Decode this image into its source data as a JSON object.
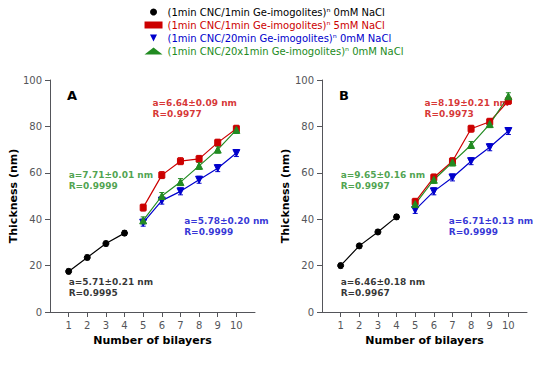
{
  "chart_data": [
    {
      "type": "line",
      "title": "A",
      "xlabel": "Number of bilayers",
      "ylabel": "Thickness (nm)",
      "xlim": [
        0,
        11
      ],
      "ylim": [
        0,
        100
      ],
      "xticks": [
        1,
        2,
        3,
        4,
        5,
        6,
        7,
        8,
        9,
        10
      ],
      "yticks": [
        0,
        20,
        40,
        60,
        80,
        100
      ],
      "grid": false,
      "legend": "top",
      "series": [
        {
          "name": "(1min CNC/1min Ge-imogolites)ⁿ 0mM NaCl",
          "color": "#000000",
          "marker": "circle",
          "x": [
            1,
            2,
            3,
            4
          ],
          "values": [
            17.5,
            23.5,
            29.5,
            34.0
          ],
          "yerr": [
            1.0,
            1.0,
            1.0,
            1.0
          ]
        },
        {
          "name": "(1min CNC/1min Ge-imogolites)ⁿ 5mM NaCl",
          "color": "#cc0000",
          "marker": "square",
          "x": [
            5,
            6,
            7,
            8,
            9,
            10
          ],
          "values": [
            45.0,
            59.0,
            65.0,
            66.0,
            73.0,
            79.0
          ],
          "yerr": [
            1.5,
            1.5,
            1.5,
            1.5,
            1.5,
            1.5
          ]
        },
        {
          "name": "(1min CNC/20min Ge-imogolites)ⁿ 0mM NaCl",
          "color": "#0000cc",
          "marker": "triangle-down",
          "x": [
            5,
            6,
            7,
            8,
            9,
            10
          ],
          "values": [
            38.5,
            48.0,
            52.0,
            57.0,
            62.0,
            68.5
          ],
          "yerr": [
            1.5,
            1.5,
            1.5,
            1.5,
            1.5,
            1.5
          ]
        },
        {
          "name": "(1min CNC/20x1min Ge-imogolites)ⁿ 0mM NaCl",
          "color": "#228B22",
          "marker": "triangle-up",
          "x": [
            5,
            6,
            7,
            8,
            9,
            10
          ],
          "values": [
            39.5,
            50.0,
            56.0,
            63.0,
            70.0,
            78.5
          ],
          "yerr": [
            1.5,
            1.5,
            1.5,
            1.5,
            1.5,
            1.5
          ]
        }
      ],
      "annotations": [
        {
          "text": "a=5.71±0.21 nm\nR=0.9995",
          "x": 1.0,
          "y": 6,
          "color": "#000000"
        },
        {
          "text": "a=6.64±0.09 nm\nR=0.9977",
          "x": 5.5,
          "y": 83,
          "color": "#cc0000"
        },
        {
          "text": "a=5.78±0.20 nm\nR=0.9999",
          "x": 7.2,
          "y": 32,
          "color": "#0000cc"
        },
        {
          "text": "a=7.71±0.01 nm\nR=0.9999",
          "x": 1.0,
          "y": 52,
          "color": "#228B22"
        }
      ]
    },
    {
      "type": "line",
      "title": "B",
      "xlabel": "Number of bilayers",
      "ylabel": "Thickness (nm)",
      "xlim": [
        0,
        11
      ],
      "ylim": [
        0,
        100
      ],
      "xticks": [
        1,
        2,
        3,
        4,
        5,
        6,
        7,
        8,
        9,
        10
      ],
      "yticks": [
        0,
        20,
        40,
        60,
        80,
        100
      ],
      "grid": false,
      "legend": "top",
      "series": [
        {
          "name": "(1min CNC/1min Ge-imogolites)ⁿ 0mM NaCl",
          "color": "#000000",
          "marker": "circle",
          "x": [
            1,
            2,
            3,
            4
          ],
          "values": [
            20.0,
            28.5,
            34.5,
            41.0
          ],
          "yerr": [
            1.0,
            1.0,
            1.0,
            1.0
          ]
        },
        {
          "name": "(1min CNC/1min Ge-imogolites)ⁿ 5mM NaCl",
          "color": "#cc0000",
          "marker": "square",
          "x": [
            5,
            6,
            7,
            8,
            9,
            10
          ],
          "values": [
            47.5,
            58.0,
            65.0,
            79.0,
            82.0,
            91.0
          ],
          "yerr": [
            1.5,
            1.5,
            1.5,
            1.5,
            1.5,
            1.5
          ]
        },
        {
          "name": "(1min CNC/20min Ge-imogolites)ⁿ 0mM NaCl",
          "color": "#0000cc",
          "marker": "triangle-down",
          "x": [
            5,
            6,
            7,
            8,
            9,
            10
          ],
          "values": [
            44.0,
            52.0,
            58.0,
            65.0,
            71.0,
            78.0
          ],
          "yerr": [
            1.5,
            1.5,
            1.5,
            1.5,
            1.5,
            1.5
          ]
        },
        {
          "name": "(1min CNC/20x1min Ge-imogolites)ⁿ 0mM NaCl",
          "color": "#228B22",
          "marker": "triangle-up",
          "x": [
            5,
            6,
            7,
            8,
            9,
            10
          ],
          "values": [
            46.5,
            57.0,
            64.5,
            72.0,
            81.0,
            93.0
          ],
          "yerr": [
            1.5,
            1.5,
            1.5,
            1.5,
            1.5,
            1.5
          ]
        }
      ],
      "annotations": [
        {
          "text": "a=6.46±0.18 nm\nR=0.9967",
          "x": 1.0,
          "y": 6,
          "color": "#000000"
        },
        {
          "text": "a=8.19±0.21 nm\nR=0.9973",
          "x": 5.5,
          "y": 83,
          "color": "#cc0000"
        },
        {
          "text": "a=6.71±0.13 nm\nR=0.9999",
          "x": 6.8,
          "y": 32,
          "color": "#0000cc"
        },
        {
          "text": "a=9.65±0.16 nm\nR=0.9997",
          "x": 1.0,
          "y": 52,
          "color": "#228B22"
        }
      ]
    }
  ]
}
